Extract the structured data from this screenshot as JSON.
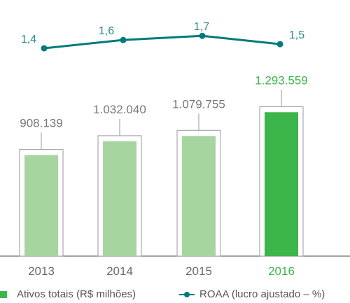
{
  "chart_data": {
    "type": "bar",
    "categories": [
      "2013",
      "2014",
      "2015",
      "2016"
    ],
    "series": [
      {
        "name": "Ativos totais (R$ milhões)",
        "type": "bar",
        "values": [
          908139,
          1032040,
          1079755,
          1293559
        ],
        "labels": [
          "908.139",
          "1.032.040",
          "1.079.755",
          "1.293.559"
        ]
      },
      {
        "name": "ROAA (lucro ajustado – %)",
        "type": "line",
        "values": [
          1.4,
          1.6,
          1.7,
          1.5
        ],
        "labels": [
          "1,4",
          "1,6",
          "1,7",
          "1,5"
        ]
      }
    ],
    "highlight_index": 3,
    "legend_position": "bottom-left",
    "colors": {
      "bar": "#a6d5a0",
      "bar_highlight": "#3cb54a",
      "bar_outline": "#aaaaaa",
      "line": "#007a7a",
      "line_label": "#2a8a8f",
      "bar_label": "#777777",
      "axis": "#6a6a6a"
    }
  }
}
